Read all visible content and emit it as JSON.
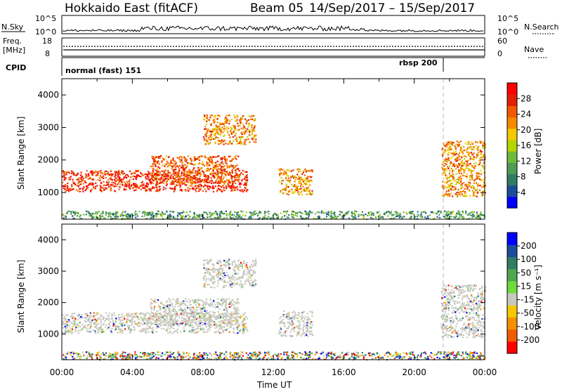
{
  "header": {
    "station": "Hokkaido East (fitACF)",
    "beam": "Beam 05",
    "dates": "14/Sep/2017 – 15/Sep/2017"
  },
  "strips": {
    "nsky_label": "N.Sky",
    "nsky_ticks": [
      "10^5",
      "10^0"
    ],
    "nsearch_label": "N.Search",
    "nsearch_ticks": [
      "10^5",
      "10^0"
    ],
    "freq_label_1": "Freq.",
    "freq_label_2": "[MHz]",
    "freq_ticks": [
      "18",
      "8"
    ],
    "nave_label": "Nave",
    "nave_ticks": [
      "60",
      "0"
    ],
    "cpid_label": "CPID",
    "cpid_mode_1": "normal (fast) 151",
    "cpid_mode_2": "rbsp 200"
  },
  "chart_data": [
    {
      "type": "heatmap",
      "title": "Power",
      "ylabel": "Slant Range [km]",
      "ylim": [
        180,
        4500
      ],
      "yticks": [
        "1000",
        "2000",
        "3000",
        "4000"
      ],
      "xlabel": "",
      "xlim_hours": [
        0,
        24
      ],
      "colorbar_label": "Power [dB]",
      "colorbar_ticks": [
        "4",
        "8",
        "12",
        "16",
        "20",
        "24",
        "28"
      ],
      "colors": [
        "#0000ff",
        "#1c4c9c",
        "#2e7d64",
        "#4e9b55",
        "#6fbc3c",
        "#b7d400",
        "#f5c800",
        "#f58a00",
        "#f05a00",
        "#e02000",
        "#ff0000"
      ],
      "regions": [
        {
          "name": "main band",
          "t0": 0.0,
          "t1": 10.5,
          "r0": 1050,
          "r1": 1700,
          "value": 26
        },
        {
          "name": "ramp",
          "t0": 5.0,
          "t1": 10.0,
          "r0": 1300,
          "r1": 2150,
          "value": 24
        },
        {
          "name": "upper patch",
          "t0": 8.0,
          "t1": 11.0,
          "r0": 2500,
          "r1": 3400,
          "value": 20
        },
        {
          "name": "blob",
          "t0": 12.3,
          "t1": 14.2,
          "r0": 950,
          "r1": 1750,
          "value": 22
        },
        {
          "name": "late cluster",
          "t0": 21.5,
          "t1": 24.0,
          "r0": 900,
          "r1": 2600,
          "value": 20
        },
        {
          "name": "near range",
          "t0": 0.0,
          "t1": 24.0,
          "r0": 200,
          "r1": 450,
          "value": 10
        }
      ]
    },
    {
      "type": "heatmap",
      "title": "Velocity",
      "ylabel": "Slant Range [km]",
      "ylim": [
        180,
        4500
      ],
      "yticks": [
        "1000",
        "2000",
        "3000",
        "4000"
      ],
      "xlabel": "Time UT",
      "xticks": [
        "00:00",
        "04:00",
        "08:00",
        "12:00",
        "16:00",
        "20:00",
        "00:00"
      ],
      "xlim_hours": [
        0,
        24
      ],
      "colorbar_label": "Velocity [m s⁻¹]",
      "colorbar_ticks": [
        "200",
        "100",
        "50",
        "15",
        "-15",
        "-50",
        "-100",
        "-200"
      ],
      "colors": [
        "#0000ff",
        "#1c4c9c",
        "#2e7d64",
        "#4ea84e",
        "#6fdc3c",
        "#c8c8c0",
        "#f5c800",
        "#f59000",
        "#f05a00",
        "#ff0000"
      ],
      "regions": [
        {
          "name": "main band",
          "t0": 0.0,
          "t1": 10.5,
          "r0": 1050,
          "r1": 1700,
          "value": 0
        },
        {
          "name": "ramp",
          "t0": 5.0,
          "t1": 10.0,
          "r0": 1300,
          "r1": 2150,
          "value": 0
        },
        {
          "name": "upper patch",
          "t0": 8.0,
          "t1": 11.0,
          "r0": 2500,
          "r1": 3400,
          "value": 0
        },
        {
          "name": "blob",
          "t0": 12.3,
          "t1": 14.2,
          "r0": 950,
          "r1": 1750,
          "value": 0
        },
        {
          "name": "late cluster",
          "t0": 21.5,
          "t1": 24.0,
          "r0": 900,
          "r1": 2600,
          "value": 0
        },
        {
          "name": "near range",
          "t0": 0.0,
          "t1": 24.0,
          "r0": 200,
          "r1": 450,
          "value": 30
        }
      ]
    }
  ]
}
